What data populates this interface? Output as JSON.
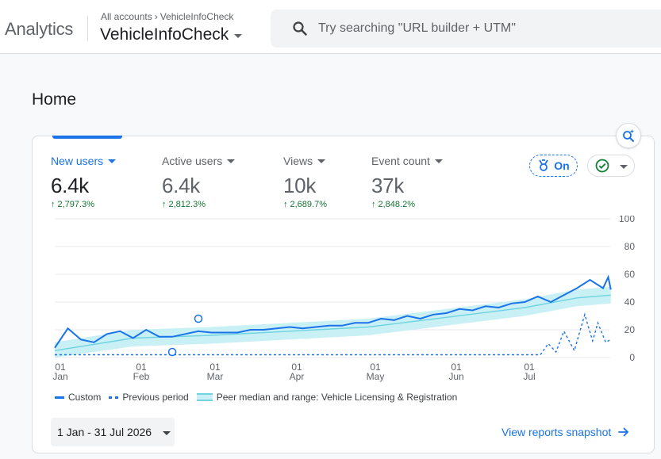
{
  "app": {
    "name": "Analytics"
  },
  "breadcrumb": {
    "root": "All accounts",
    "current": "VehicleInfoCheck"
  },
  "property": {
    "name": "VehicleInfoCheck"
  },
  "search": {
    "placeholder": "Try searching \"URL builder + UTM\""
  },
  "page": {
    "title": "Home"
  },
  "metrics": [
    {
      "label": "New users",
      "value": "6.4k",
      "change": "2,797.3%",
      "active": true
    },
    {
      "label": "Active users",
      "value": "6.4k",
      "change": "2,812.3%",
      "active": false
    },
    {
      "label": "Views",
      "value": "10k",
      "change": "2,689.7%",
      "active": false
    },
    {
      "label": "Event count",
      "value": "37k",
      "change": "2,848.2%",
      "active": false
    }
  ],
  "toggles": {
    "benchmark_label": "On"
  },
  "colors": {
    "accent": "#1a73e8",
    "positive": "#137333",
    "peer_band": "#c8f0f5",
    "peer_line": "#6fd3e0"
  },
  "icons": {
    "search": "search-icon",
    "insights": "insights-sparkle-icon",
    "benchmark": "benchmark-icon",
    "check": "check-circle-icon"
  },
  "chart_data": {
    "type": "line",
    "x_ticks": [
      {
        "day": "01",
        "month": "Jan"
      },
      {
        "day": "01",
        "month": "Feb"
      },
      {
        "day": "01",
        "month": "Mar"
      },
      {
        "day": "01",
        "month": "Apr"
      },
      {
        "day": "01",
        "month": "May"
      },
      {
        "day": "01",
        "month": "Jun"
      },
      {
        "day": "01",
        "month": "Jul"
      }
    ],
    "y_ticks": [
      "100",
      "80",
      "60",
      "40",
      "20",
      "0"
    ],
    "ylim": [
      0,
      100
    ],
    "grid": true,
    "legend_position": "bottom-left",
    "series": [
      {
        "name": "Custom",
        "points": [
          [
            0,
            7
          ],
          [
            5,
            21
          ],
          [
            10,
            13
          ],
          [
            15,
            11
          ],
          [
            20,
            17
          ],
          [
            25,
            19
          ],
          [
            30,
            14
          ],
          [
            35,
            20
          ],
          [
            40,
            15
          ],
          [
            45,
            15
          ],
          [
            50,
            17
          ],
          [
            55,
            19
          ],
          [
            60,
            18
          ],
          [
            65,
            18
          ],
          [
            70,
            18
          ],
          [
            75,
            20
          ],
          [
            80,
            20
          ],
          [
            85,
            21
          ],
          [
            90,
            22
          ],
          [
            95,
            21
          ],
          [
            100,
            22
          ],
          [
            105,
            23
          ],
          [
            110,
            23
          ],
          [
            115,
            25
          ],
          [
            120,
            25
          ],
          [
            125,
            28
          ],
          [
            130,
            27
          ],
          [
            135,
            30
          ],
          [
            140,
            28
          ],
          [
            145,
            31
          ],
          [
            150,
            32
          ],
          [
            155,
            35
          ],
          [
            160,
            34
          ],
          [
            165,
            37
          ],
          [
            170,
            36
          ],
          [
            175,
            39
          ],
          [
            180,
            40
          ],
          [
            185,
            44
          ],
          [
            190,
            40
          ],
          [
            195,
            45
          ],
          [
            200,
            50
          ],
          [
            205,
            56
          ],
          [
            210,
            50
          ],
          [
            212,
            58
          ],
          [
            213,
            49
          ]
        ]
      },
      {
        "name": "Previous period",
        "points": [
          [
            0,
            2
          ],
          [
            179,
            2
          ],
          [
            186,
            2
          ],
          [
            189,
            10
          ],
          [
            192,
            4
          ],
          [
            195,
            19
          ],
          [
            199,
            5
          ],
          [
            203,
            31
          ],
          [
            206,
            12
          ],
          [
            208,
            25
          ],
          [
            211,
            11
          ],
          [
            213,
            13
          ]
        ]
      },
      {
        "name": "Peer median and range: Vehicle Licensing & Registration",
        "points": [
          [
            0,
            5
          ],
          [
            30,
            14
          ],
          [
            60,
            16
          ],
          [
            90,
            19
          ],
          [
            120,
            22
          ],
          [
            150,
            29
          ],
          [
            180,
            36
          ],
          [
            200,
            43
          ],
          [
            213,
            45
          ]
        ]
      }
    ]
  },
  "footer": {
    "date_range": "1 Jan - 31 Jul 2026",
    "link_label": "View reports snapshot"
  }
}
